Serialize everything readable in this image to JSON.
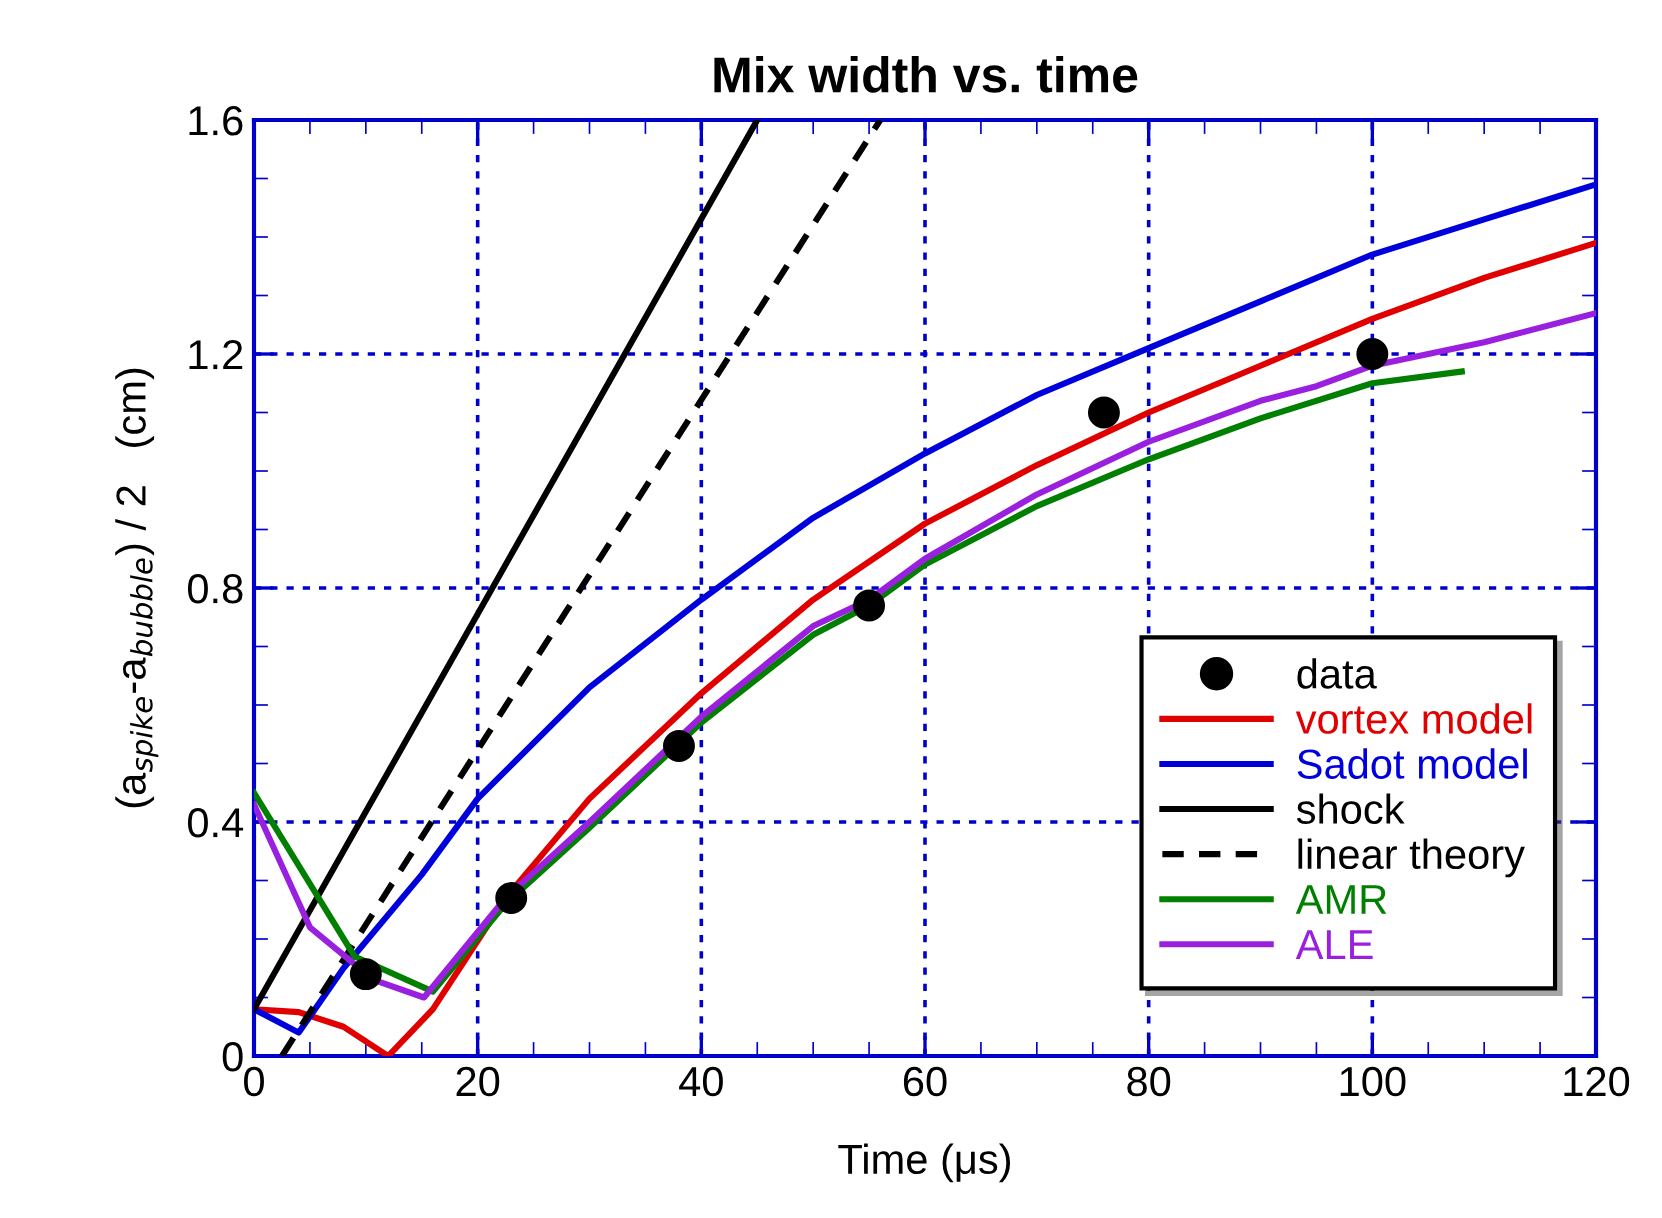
{
  "chart_data": {
    "type": "line",
    "title": "Mix width vs. time",
    "xlabel": "Time (μs)",
    "ylabel": "(a$_{spike}$-a$_{bubble}$) / 2   (cm)",
    "xlim": [
      0,
      120
    ],
    "ylim": [
      0,
      1.6
    ],
    "xticks": [
      0,
      20,
      40,
      60,
      80,
      100,
      120
    ],
    "yticks": [
      0,
      0.4,
      0.8,
      1.2,
      1.6
    ],
    "grid": true,
    "legend": "bottom right",
    "series": [
      {
        "name": "data",
        "type": "scatter",
        "marker": "circle",
        "color": "#000000",
        "x": [
          10,
          23,
          38,
          55,
          76,
          100
        ],
        "values": [
          0.14,
          0.27,
          0.53,
          0.77,
          1.1,
          1.2
        ]
      },
      {
        "name": "vortex model",
        "color": "#e00000",
        "x": [
          0,
          4,
          8,
          12,
          16,
          22.5,
          30,
          40,
          50,
          60,
          70,
          80,
          90,
          100,
          110,
          120
        ],
        "values": [
          0.08,
          0.075,
          0.05,
          0.0,
          0.08,
          0.27,
          0.44,
          0.62,
          0.78,
          0.91,
          1.01,
          1.1,
          1.18,
          1.26,
          1.33,
          1.39
        ]
      },
      {
        "name": "Sadot model",
        "color": "#0000dd",
        "x": [
          0,
          4,
          8,
          15,
          20,
          30,
          40,
          50,
          60,
          70,
          80,
          90,
          100,
          110,
          120
        ],
        "values": [
          0.08,
          0.04,
          0.15,
          0.31,
          0.44,
          0.63,
          0.78,
          0.92,
          1.03,
          1.13,
          1.21,
          1.29,
          1.37,
          1.43,
          1.49
        ]
      },
      {
        "name": "shock",
        "color": "#000000",
        "x": [
          0,
          45
        ],
        "values": [
          0.08,
          1.6
        ]
      },
      {
        "name": "linear theory",
        "color": "#000000",
        "line_style": "dashed",
        "x": [
          2.5,
          56
        ],
        "values": [
          0,
          1.6
        ]
      },
      {
        "name": "AMR",
        "color": "#007f00",
        "x": [
          0,
          9,
          16,
          22.5,
          30,
          40,
          50,
          55,
          60,
          70,
          80,
          90,
          100,
          108
        ],
        "values": [
          0.45,
          0.17,
          0.11,
          0.26,
          0.39,
          0.57,
          0.72,
          0.77,
          0.84,
          0.94,
          1.02,
          1.09,
          1.15,
          1.17
        ]
      },
      {
        "name": "ALE",
        "color": "#9a20e0",
        "x": [
          0,
          5,
          10.7,
          15.2,
          22.5,
          30,
          40,
          50,
          55,
          60,
          70,
          80,
          90,
          95,
          100,
          110,
          120
        ],
        "values": [
          0.43,
          0.22,
          0.13,
          0.1,
          0.27,
          0.4,
          0.58,
          0.735,
          0.78,
          0.85,
          0.96,
          1.05,
          1.12,
          1.145,
          1.18,
          1.22,
          1.27
        ]
      }
    ]
  }
}
